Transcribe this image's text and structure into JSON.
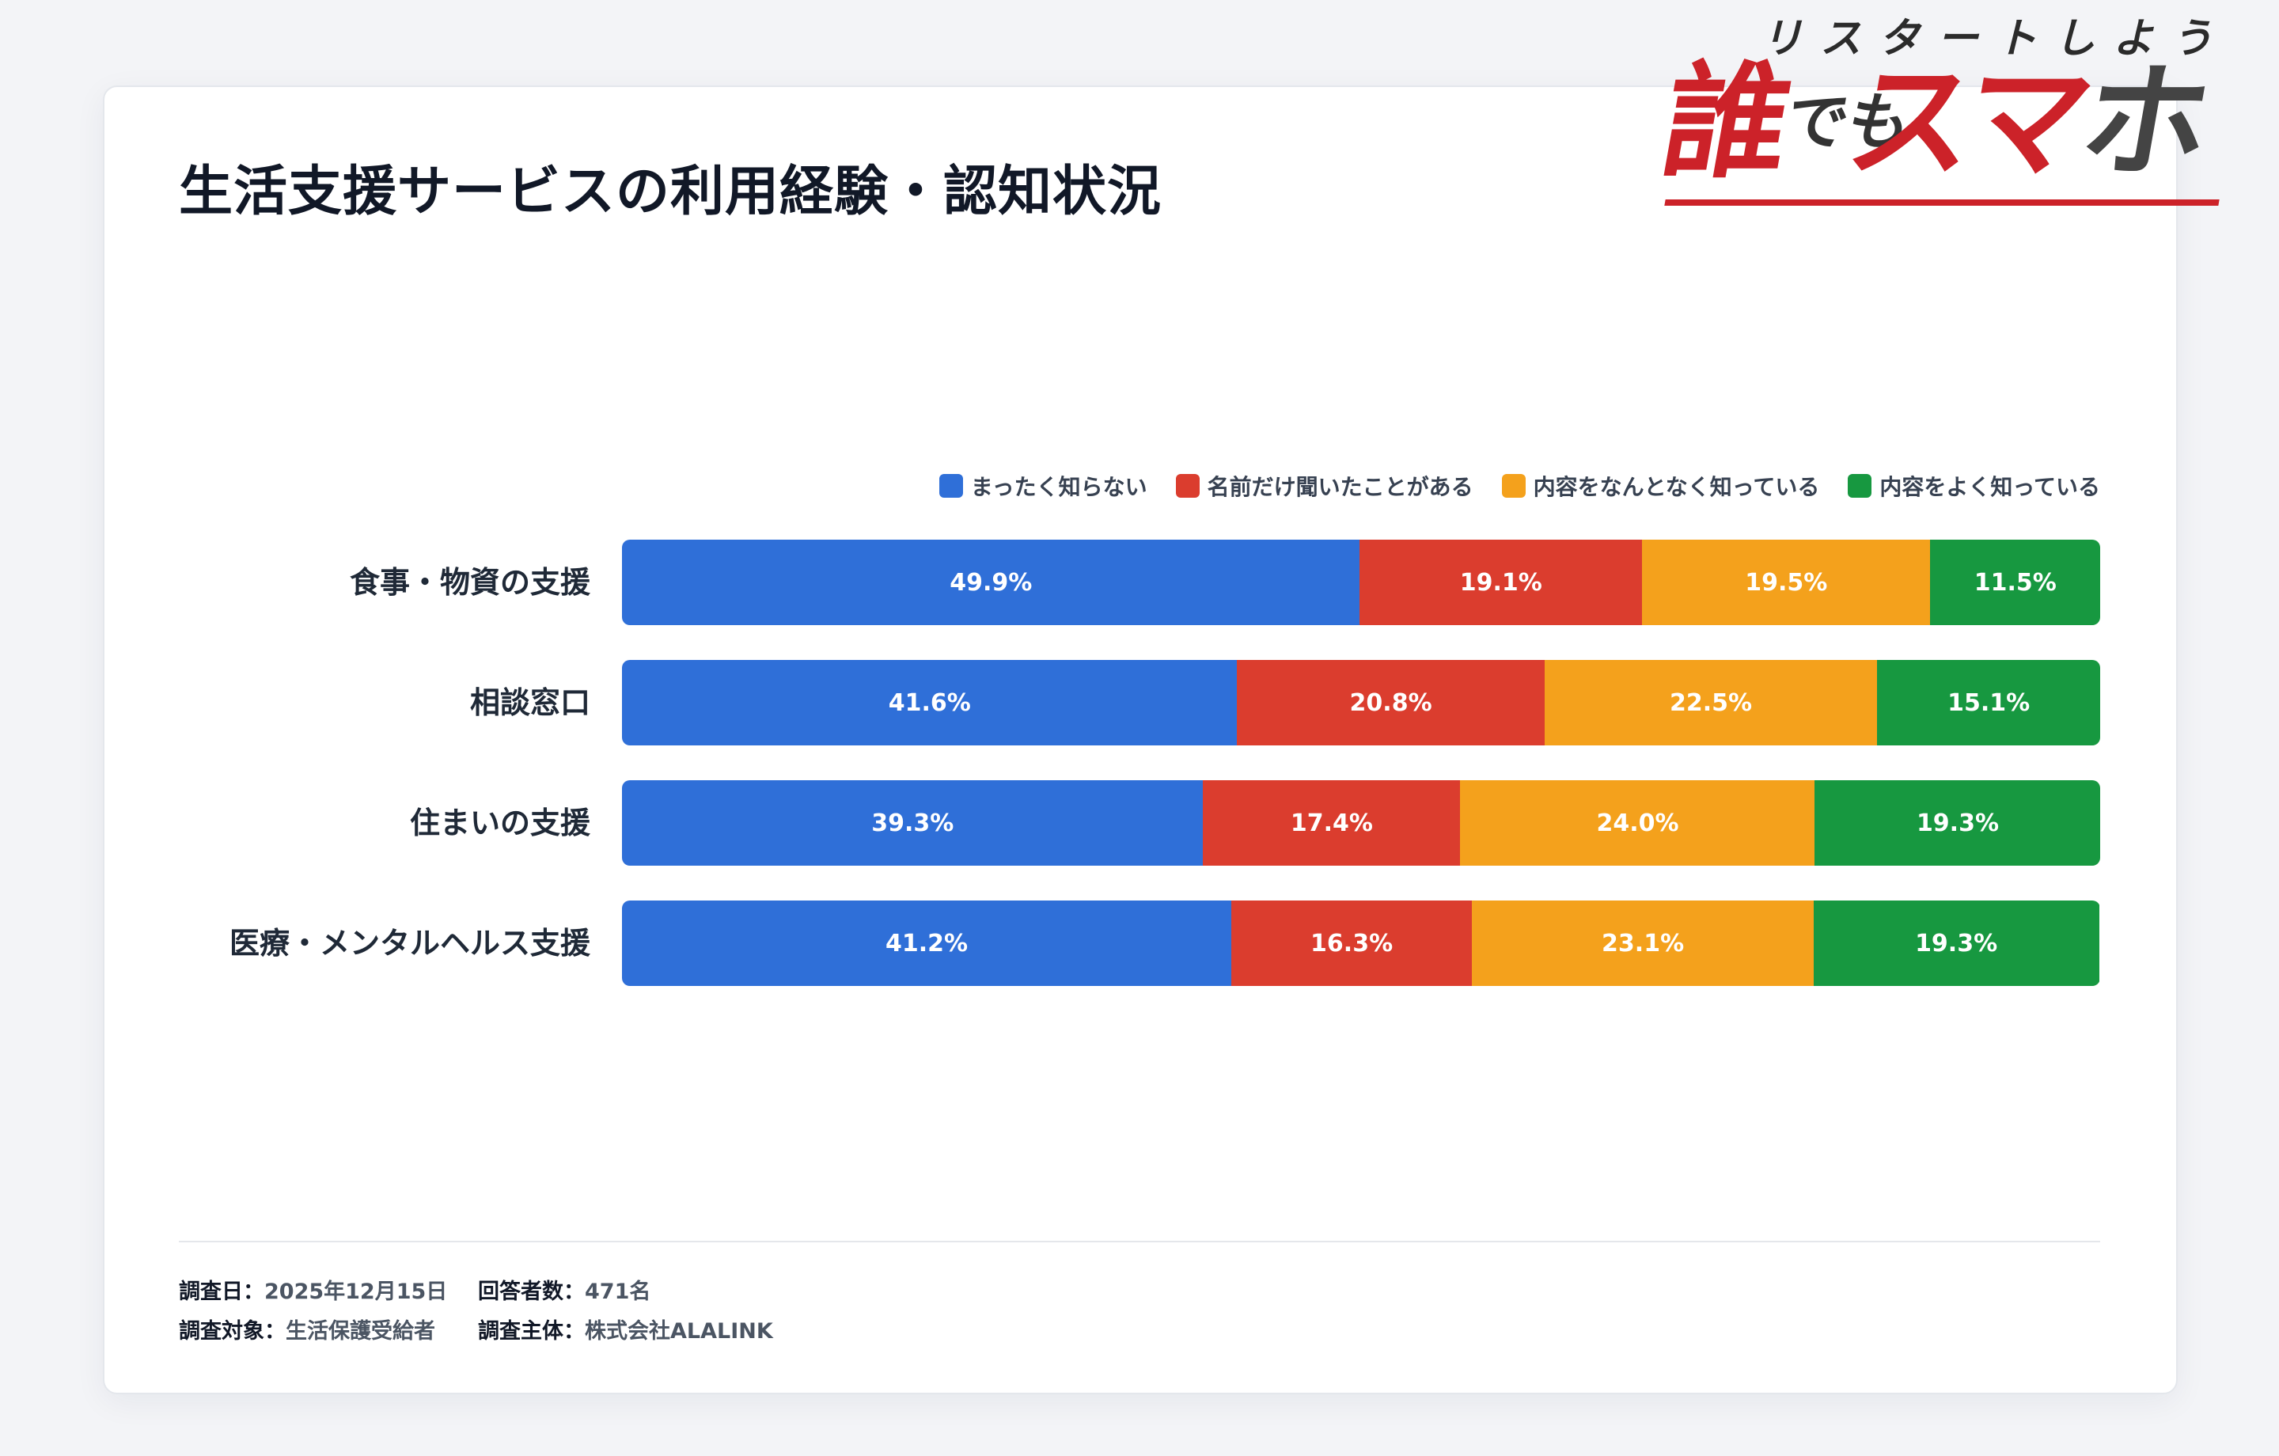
{
  "logo": {
    "tagline": "リスタートしよう",
    "brand_part1": "誰",
    "brand_part2": "でも",
    "brand_part3": "スマ",
    "brand_part4": "ホ"
  },
  "chart_data": {
    "type": "bar",
    "orientation": "horizontal",
    "stacked": true,
    "title": "生活支援サービスの利用経験・認知状況",
    "categories": [
      "食事・物資の支援",
      "相談窓口",
      "住まいの支援",
      "医療・メンタルヘルス支援"
    ],
    "series": [
      {
        "name": "まったく知らない",
        "color": "#2f6fd8",
        "values": [
          49.9,
          41.6,
          39.3,
          41.2
        ],
        "labels": [
          "49.9%",
          "41.6%",
          "39.3%",
          "41.2%"
        ]
      },
      {
        "name": "名前だけ聞いたことがある",
        "color": "#db3d2e",
        "values": [
          19.1,
          20.8,
          17.4,
          16.3
        ],
        "labels": [
          "19.1%",
          "20.8%",
          "17.4%",
          "16.3%"
        ]
      },
      {
        "name": "内容をなんとなく知っている",
        "color": "#f4a11c",
        "values": [
          19.5,
          22.5,
          24.0,
          23.1
        ],
        "labels": [
          "19.5%",
          "22.5%",
          "24.0%",
          "23.1%"
        ]
      },
      {
        "name": "内容をよく知っている",
        "color": "#179840",
        "values": [
          11.5,
          15.1,
          19.3,
          19.3
        ],
        "labels": [
          "11.5%",
          "15.1%",
          "19.3%",
          "19.3%"
        ]
      }
    ],
    "unit": "%",
    "xlim": [
      0,
      100
    ],
    "legend": "top-right",
    "grid": false
  },
  "footer": {
    "date_label": "調査日：",
    "date_value": "2025年12月15日",
    "respondents_label": "回答者数：",
    "respondents_value": "471名",
    "target_label": "調査対象：",
    "target_value": "生活保護受給者",
    "sponsor_label": "調査主体：",
    "sponsor_value": "株式会社ALALINK"
  }
}
